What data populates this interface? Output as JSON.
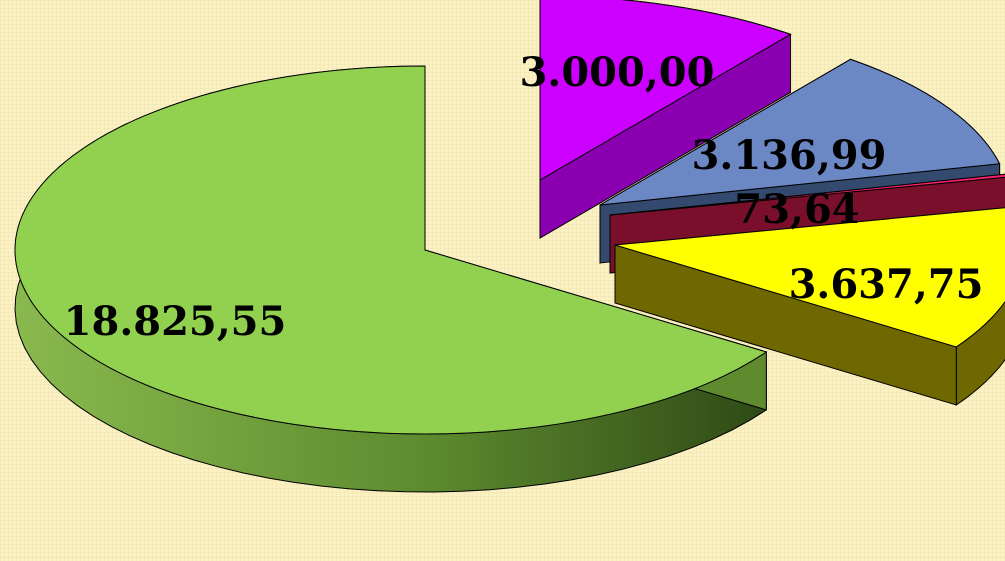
{
  "chart_data": {
    "type": "pie",
    "style": "3d-exploded",
    "legend": "none",
    "title": "",
    "slices": [
      {
        "label": "18.825,55",
        "value": 18825.55,
        "color": "#92d050",
        "side_color": "#5f8a2e"
      },
      {
        "label": "3.000,00",
        "value": 3000.0,
        "color": "#cc00ff",
        "side_color": "#8a00b0"
      },
      {
        "label": "3.136,99",
        "value": 3136.99,
        "color": "#6b87c4",
        "side_color": "#33496e"
      },
      {
        "label": "73,64",
        "value": 73.64,
        "color": "#ff1f70",
        "side_color": "#7a0f2c"
      },
      {
        "label": "3.637,75",
        "value": 3637.75,
        "color": "#ffff00",
        "side_color": "#6f6800"
      }
    ]
  }
}
